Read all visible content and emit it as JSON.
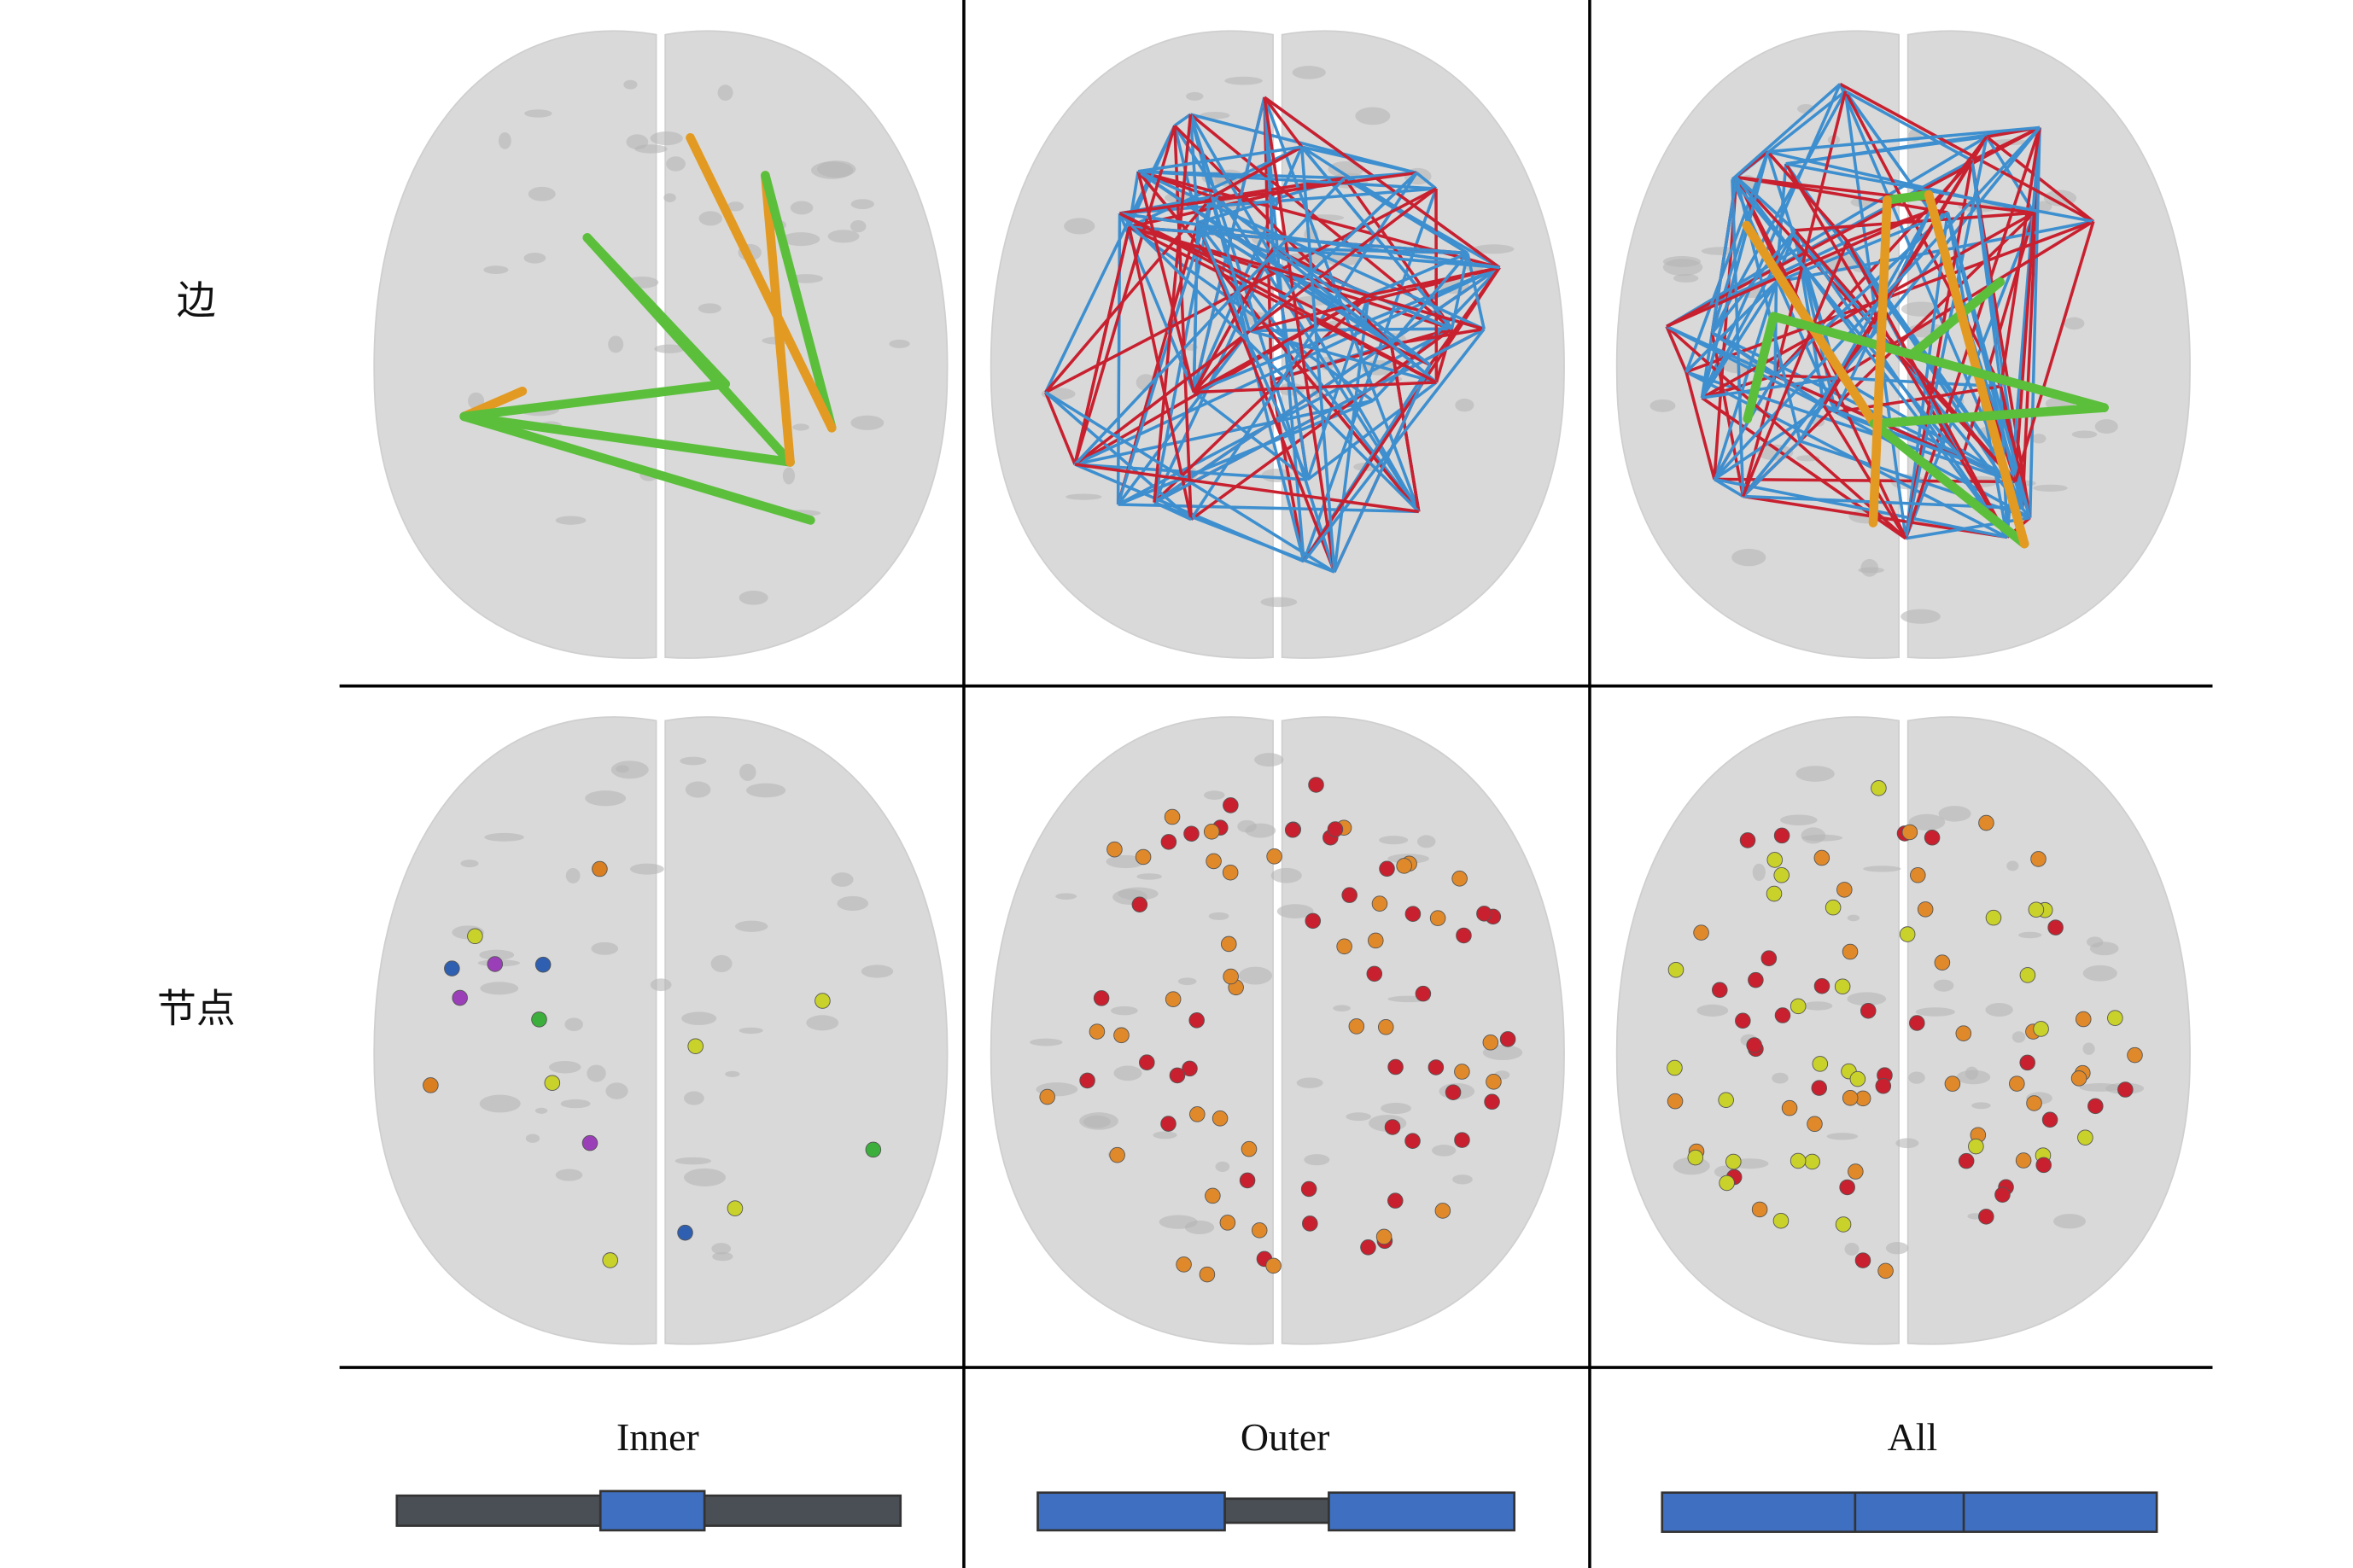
{
  "row_labels": [
    "边",
    "节点"
  ],
  "columns": [
    "Inner",
    "Outer",
    "All"
  ]
}
